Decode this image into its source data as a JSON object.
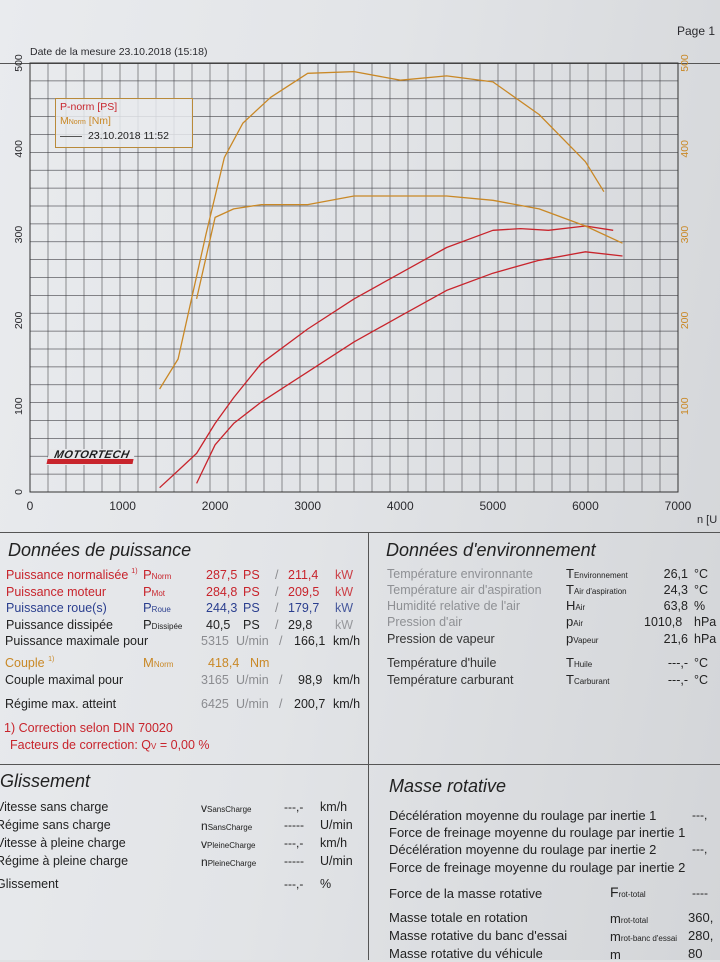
{
  "page_label": "Page 1",
  "measurement_date": "Date de la mesure 23.10.2018 (15:18)",
  "legend": {
    "p_norm": "P-norm [PS]",
    "m_norm_main": "M",
    "m_norm_sub": "Norm",
    "m_norm_unit": " [Nm]",
    "run_date": "23.10.2018 11:52"
  },
  "logo_text": "MOTORTECH",
  "colors": {
    "power": "#c8242c",
    "torque": "#c98826",
    "grid": "#3a3a3a"
  },
  "chart_data": {
    "type": "line",
    "xlabel": "n [U",
    "x_ticks": [
      "0",
      "1000",
      "2000",
      "3000",
      "4000",
      "5000",
      "6000",
      "7000"
    ],
    "left_ticks": [
      "0",
      "100",
      "200",
      "300",
      "400",
      "500"
    ],
    "right_ticks": [
      "100",
      "200",
      "300",
      "400",
      "500"
    ],
    "xlim": [
      0,
      7000
    ],
    "ylim_left": [
      0,
      500
    ],
    "ylim_right": [
      0,
      500
    ],
    "grid": true,
    "series": [
      {
        "name": "P-norm [PS]",
        "color": "#c8242c",
        "axis": "left",
        "x": [
          1400,
          1600,
          1800,
          2000,
          2200,
          2500,
          3000,
          3500,
          4000,
          4500,
          5000,
          5300,
          5600,
          6000,
          6300
        ],
        "y": [
          5,
          25,
          45,
          80,
          110,
          150,
          190,
          225,
          255,
          285,
          305,
          307,
          305,
          310,
          305
        ]
      },
      {
        "name": "P-norm [PS] (run 2)",
        "color": "#c8242c",
        "axis": "left",
        "x": [
          1800,
          2000,
          2200,
          2500,
          3000,
          3500,
          4000,
          4500,
          5000,
          5500,
          6000,
          6400
        ],
        "y": [
          10,
          55,
          80,
          105,
          140,
          175,
          205,
          235,
          255,
          270,
          280,
          275
        ]
      },
      {
        "name": "MNorm [Nm]",
        "color": "#c98826",
        "axis": "right",
        "x": [
          1400,
          1600,
          1900,
          2100,
          2300,
          2600,
          3000,
          3500,
          4000,
          4500,
          5000,
          5500,
          6000,
          6200
        ],
        "y": [
          120,
          155,
          300,
          390,
          430,
          460,
          488,
          490,
          480,
          485,
          478,
          440,
          385,
          350
        ]
      },
      {
        "name": "MNorm [Nm] (run 2)",
        "color": "#c98826",
        "axis": "right",
        "x": [
          1800,
          2000,
          2200,
          2500,
          3000,
          3500,
          4000,
          4500,
          5000,
          5500,
          6000,
          6400
        ],
        "y": [
          225,
          320,
          330,
          335,
          335,
          345,
          345,
          345,
          340,
          330,
          310,
          290
        ]
      }
    ]
  },
  "power": {
    "title": "Données de puissance",
    "rows": [
      {
        "label": "Puissance normalisée",
        "note": "1)",
        "sym": "P",
        "sub": "Norm",
        "v1": "287,5",
        "u1": "PS",
        "v2": "211,4",
        "u2": "kW"
      },
      {
        "label": "Puissance moteur",
        "note": "",
        "sym": "P",
        "sub": "Mot",
        "v1": "284,8",
        "u1": "PS",
        "v2": "209,5",
        "u2": "kW"
      },
      {
        "label": "Puissance roue(s)",
        "note": "",
        "sym": "P",
        "sub": "Roue",
        "v1": "244,3",
        "u1": "PS",
        "v2": "179,7",
        "u2": "kW"
      },
      {
        "label": "Puissance dissipée",
        "note": "",
        "sym": "P",
        "sub": "Dissipée",
        "v1": "40,5",
        "u1": "PS",
        "v2": "29,8",
        "u2": "kW"
      }
    ],
    "max_power_label": "Puissance maximale pour",
    "max_power_rpm": "5315",
    "max_power_speed": "166,1",
    "unit_rpm": "U/min",
    "unit_speed": "km/h",
    "torque_label": "Couple",
    "torque_note": "1)",
    "torque_sym": "M",
    "torque_sub": "Norm",
    "torque_value": "418,4",
    "torque_unit": "Nm",
    "max_torque_label": "Couple maximal pour",
    "max_torque_rpm": "3165",
    "max_torque_speed": "98,9",
    "max_rpm_label": "Régime max. atteint",
    "max_rpm_rpm": "6425",
    "max_rpm_speed": "200,7",
    "correction": "1) Correction selon DIN 70020",
    "correction_factor_label": "Facteurs de correction: Q",
    "correction_factor_sub": "V",
    "correction_factor_value": "=   0,00 %"
  },
  "environment": {
    "title": "Données d'environnement",
    "rows": [
      {
        "label": "Température environnante",
        "sym": "T",
        "sub": "Environnement",
        "val": "26,1",
        "unit": "°C"
      },
      {
        "label": "Température air d'aspiration",
        "sym": "T",
        "sub": "Air d'aspiration",
        "val": "24,3",
        "unit": "°C"
      },
      {
        "label": "Humidité relative de l'air",
        "sym": "H",
        "sub": "Air",
        "val": "63,8",
        "unit": "%"
      },
      {
        "label": "Pression d'air",
        "sym": "p",
        "sub": "Air",
        "val": "1010,8",
        "unit": "hPa"
      },
      {
        "label": "Pression de vapeur",
        "sym": "p",
        "sub": "Vapeur",
        "val": "21,6",
        "unit": "hPa"
      },
      {
        "label": "Température d'huile",
        "sym": "T",
        "sub": "Huile",
        "val": "---,-",
        "unit": "°C"
      },
      {
        "label": "Température carburant",
        "sym": "T",
        "sub": "Carburant",
        "val": "---,-",
        "unit": "°C"
      }
    ]
  },
  "slip": {
    "title": "Glissement",
    "rows": [
      {
        "label": "Vitesse sans charge",
        "sym": "v",
        "sub": "SansCharge",
        "val": "---,-",
        "unit": "km/h"
      },
      {
        "label": "Régime sans charge",
        "sym": "n",
        "sub": "SansCharge",
        "val": "-----",
        "unit": "U/min"
      },
      {
        "label": "Vitesse à pleine charge",
        "sym": "v",
        "sub": "PleineCharge",
        "val": "---,-",
        "unit": "km/h"
      },
      {
        "label": "Régime à pleine charge",
        "sym": "n",
        "sub": "PleineCharge",
        "val": "-----",
        "unit": "U/min"
      },
      {
        "label": "Glissement",
        "sym": "",
        "sub": "",
        "val": "---,-",
        "unit": "%"
      }
    ]
  },
  "rotating": {
    "title": "Masse rotative",
    "rows": [
      {
        "label": "Décélération moyenne du roulage par inertie 1",
        "val": "---,"
      },
      {
        "label": "Force de freinage moyenne du roulage par inertie 1",
        "val": ""
      },
      {
        "label": "Décélération moyenne du roulage par inertie 2",
        "val": "---,"
      },
      {
        "label": "Force de freinage moyenne du roulage par inertie 2",
        "val": ""
      }
    ],
    "force_label": "Force de la masse rotative",
    "force_sym": "F",
    "force_sub": "rot-total",
    "force_val": "----",
    "mass_rows": [
      {
        "label": "Masse totale en rotation",
        "sym": "m",
        "sub": "rot-total",
        "val": "360,"
      },
      {
        "label": "Masse rotative du banc d'essai",
        "sym": "m",
        "sub": "rot-banc d'essai",
        "val": "280,"
      },
      {
        "label": "Masse rotative du véhicule",
        "sym": "m",
        "sub": "",
        "val": "80"
      }
    ]
  }
}
